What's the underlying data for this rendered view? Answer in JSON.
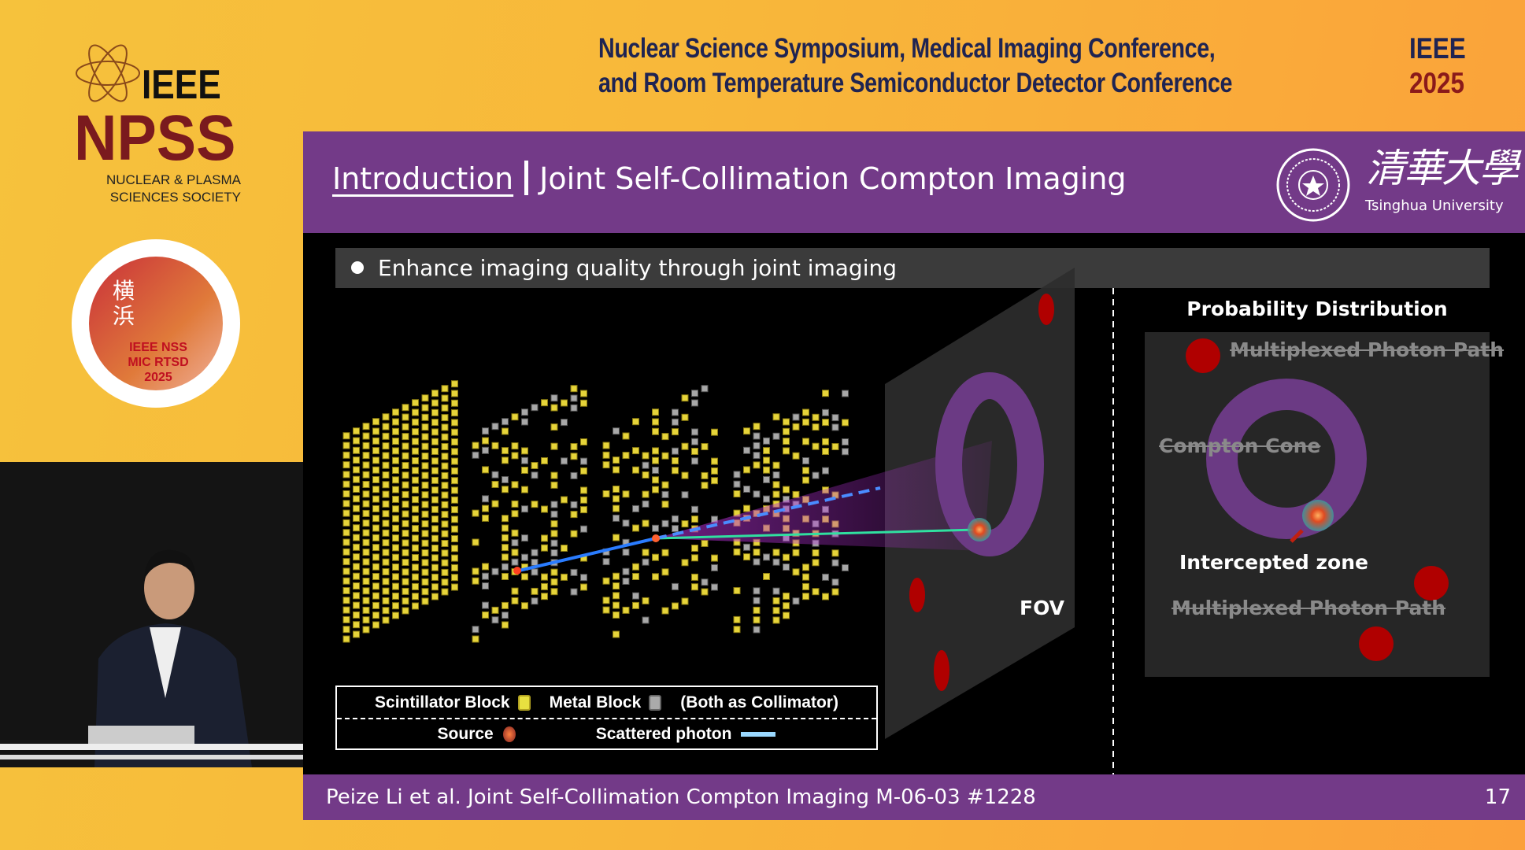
{
  "conference": {
    "line1": "Nuclear Science Symposium, Medical Imaging Conference,",
    "line2": "and Room Temperature Semiconductor Detector Conference",
    "org": "IEEE",
    "year": "2025"
  },
  "npss_logo": {
    "ieee": "IEEE",
    "npss": "NPSS",
    "line1": "NUCLEAR & PLASMA",
    "line2": "SCIENCES SOCIETY"
  },
  "badge": {
    "text": "IEEE NSS MIC RTSD 2025",
    "kanji": "横浜"
  },
  "slide": {
    "section": "Introduction",
    "title": "Joint Self-Collimation Compton Imaging",
    "university_cn": "清華大學",
    "university_en": "Tsinghua University",
    "bullet": "Enhance imaging quality through joint imaging",
    "fov_label": "FOV",
    "legend": {
      "scintillator": "Scintillator Block",
      "metal": "Metal Block",
      "both": "(Both as Collimator)",
      "source": "Source",
      "scattered": "Scattered photon"
    },
    "prob": {
      "title": "Probability Distribution",
      "multiplexed_top": "Multiplexed Photon Path",
      "compton": "Compton Cone",
      "intercepted": "Intercepted zone",
      "multiplexed_bottom": "Multiplexed Photon Path"
    },
    "footer": "Peize Li et al. Joint Self-Collimation Compton Imaging M-06-03 #1228",
    "page": "17"
  },
  "colors": {
    "purple": "#733a88",
    "navy": "#1f2452",
    "maroon": "#7a1a1e",
    "scintillator": "#e8d640",
    "metal": "#9a9a9a",
    "ring": "#6b3a84",
    "hotspot": "#b00000"
  }
}
